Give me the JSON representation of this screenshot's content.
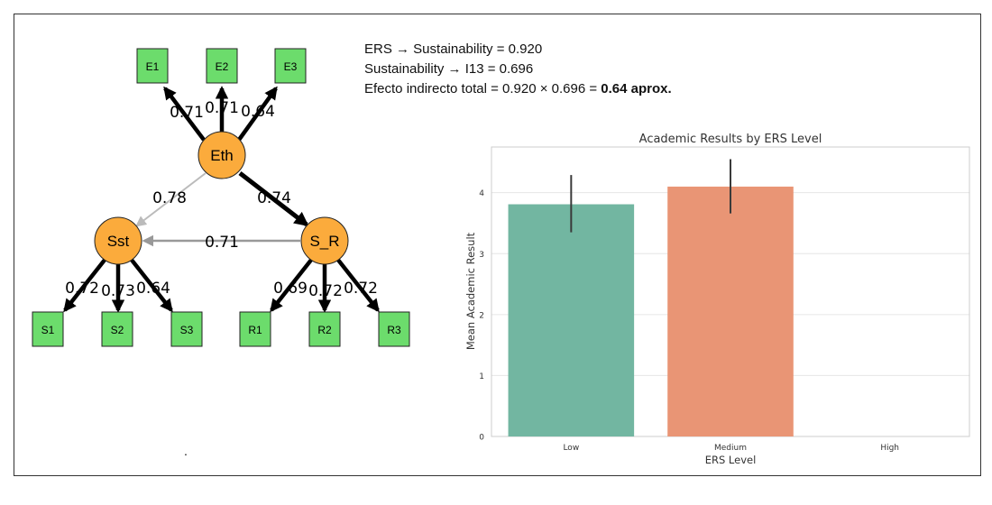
{
  "sem": {
    "latent_nodes": [
      {
        "id": "eth",
        "label": "Eth"
      },
      {
        "id": "sst",
        "label": "Sst"
      },
      {
        "id": "sr",
        "label": "S_R"
      }
    ],
    "indicators": {
      "eth": [
        {
          "label": "E1",
          "loading": "0.71"
        },
        {
          "label": "E2",
          "loading": "0.71"
        },
        {
          "label": "E3",
          "loading": "0.64"
        }
      ],
      "sst": [
        {
          "label": "S1",
          "loading": "0.72"
        },
        {
          "label": "S2",
          "loading": "0.73"
        },
        {
          "label": "S3",
          "loading": "0.64"
        }
      ],
      "sr": [
        {
          "label": "R1",
          "loading": "0.69"
        },
        {
          "label": "R2",
          "loading": "0.72"
        },
        {
          "label": "R3",
          "loading": "0.72"
        }
      ]
    },
    "paths": [
      {
        "from": "eth",
        "to": "sst",
        "coef": "0.78"
      },
      {
        "from": "eth",
        "to": "sr",
        "coef": "0.74"
      },
      {
        "from": "sr",
        "to": "sst",
        "coef": "0.71"
      }
    ],
    "colors": {
      "latent": "#fbab3c",
      "indicator": "#6cdc6c",
      "strong_arrow": "#000000",
      "grey_arrow": "#999999",
      "light_arrow": "#bbbbbb"
    }
  },
  "notes": {
    "line1": "ERS → Sustainability = 0.920",
    "line2": "Sustainability → I13 = 0.696",
    "line3_prefix": "Efecto indirecto total = 0.920 × 0.696 = ",
    "line3_bold": "0.64 aprox."
  },
  "footer_mark": ".",
  "chart_data": {
    "type": "bar",
    "title": "Academic Results by ERS Level",
    "xlabel": "ERS Level",
    "ylabel": "Mean Academic Result",
    "categories": [
      "Low",
      "Medium",
      "High"
    ],
    "values": [
      3.81,
      4.1,
      null
    ],
    "error_low": [
      3.35,
      3.66,
      null
    ],
    "error_high": [
      4.29,
      4.55,
      null
    ],
    "colors": [
      "#72b6a1",
      "#e99575",
      "#8da0cb"
    ],
    "ylim": [
      0,
      4.75
    ],
    "yticks": [
      "0",
      "1",
      "2",
      "3",
      "4"
    ],
    "grid": true
  }
}
